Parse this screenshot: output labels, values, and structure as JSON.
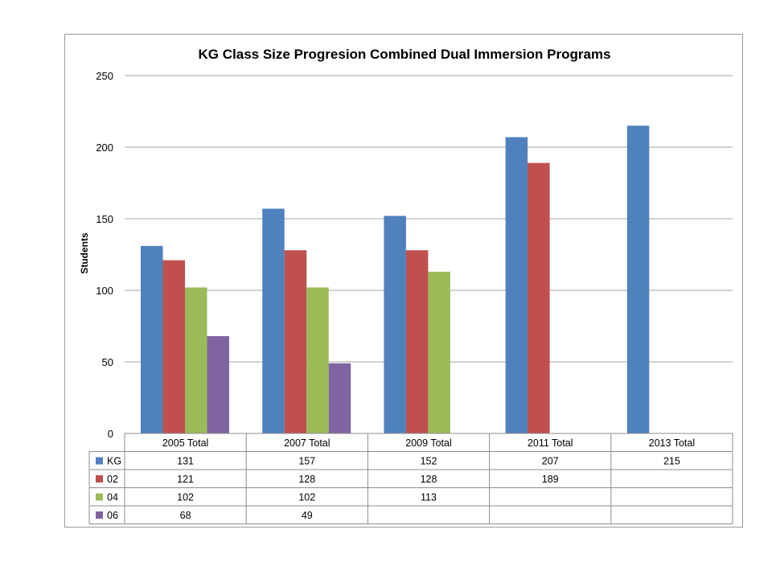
{
  "chart_data": {
    "type": "bar",
    "title": "KG Class Size Progresion Combined Dual Immersion Programs",
    "xlabel": "",
    "ylabel": "Students",
    "ylim": [
      0,
      250
    ],
    "yticks": [
      0,
      50,
      100,
      150,
      200,
      250
    ],
    "grid": true,
    "legend": "data-table",
    "categories": [
      "2005 Total",
      "2007 Total",
      "2009 Total",
      "2011 Total",
      "2013 Total"
    ],
    "series": [
      {
        "name": "KG",
        "color": "#4F81BD",
        "values": [
          131,
          157,
          152,
          207,
          215
        ]
      },
      {
        "name": "02",
        "color": "#C0504D",
        "values": [
          121,
          128,
          128,
          189,
          null
        ]
      },
      {
        "name": "04",
        "color": "#9BBB59",
        "values": [
          102,
          102,
          113,
          null,
          null
        ]
      },
      {
        "name": "06",
        "color": "#8064A2",
        "values": [
          68,
          49,
          null,
          null,
          null
        ]
      }
    ]
  }
}
